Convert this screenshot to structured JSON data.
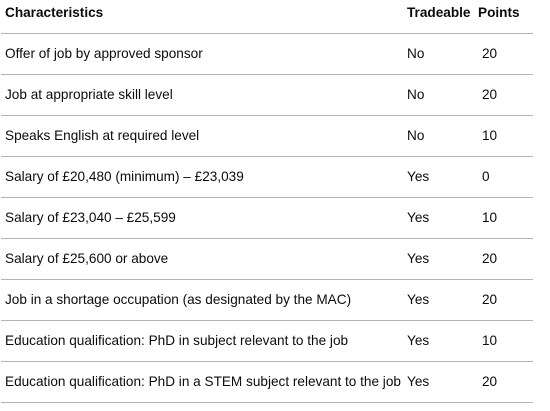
{
  "table": {
    "headers": [
      "Characteristics",
      "Tradeable",
      "Points"
    ],
    "rows": [
      {
        "characteristic": "Offer of job by approved sponsor",
        "tradeable": "No",
        "points": "20"
      },
      {
        "characteristic": "Job at appropriate skill level",
        "tradeable": "No",
        "points": "20"
      },
      {
        "characteristic": "Speaks English at required level",
        "tradeable": "No",
        "points": "10"
      },
      {
        "characteristic": "Salary of £20,480 (minimum) – £23,039",
        "tradeable": "Yes",
        "points": "0"
      },
      {
        "characteristic": "Salary of £23,040 – £25,599",
        "tradeable": "Yes",
        "points": "10"
      },
      {
        "characteristic": "Salary of £25,600 or above",
        "tradeable": "Yes",
        "points": "20"
      },
      {
        "characteristic": "Job in a shortage occupation (as designated by the MAC)",
        "tradeable": "Yes",
        "points": "20"
      },
      {
        "characteristic": "Education qualification: PhD in subject relevant to the job",
        "tradeable": "Yes",
        "points": "10"
      },
      {
        "characteristic": "Education qualification: PhD in a STEM subject relevant to the job",
        "tradeable": "Yes",
        "points": "20"
      }
    ]
  },
  "colors": {
    "text": "#0b0c0c",
    "border": "#b1b4b6",
    "background": "#ffffff"
  }
}
